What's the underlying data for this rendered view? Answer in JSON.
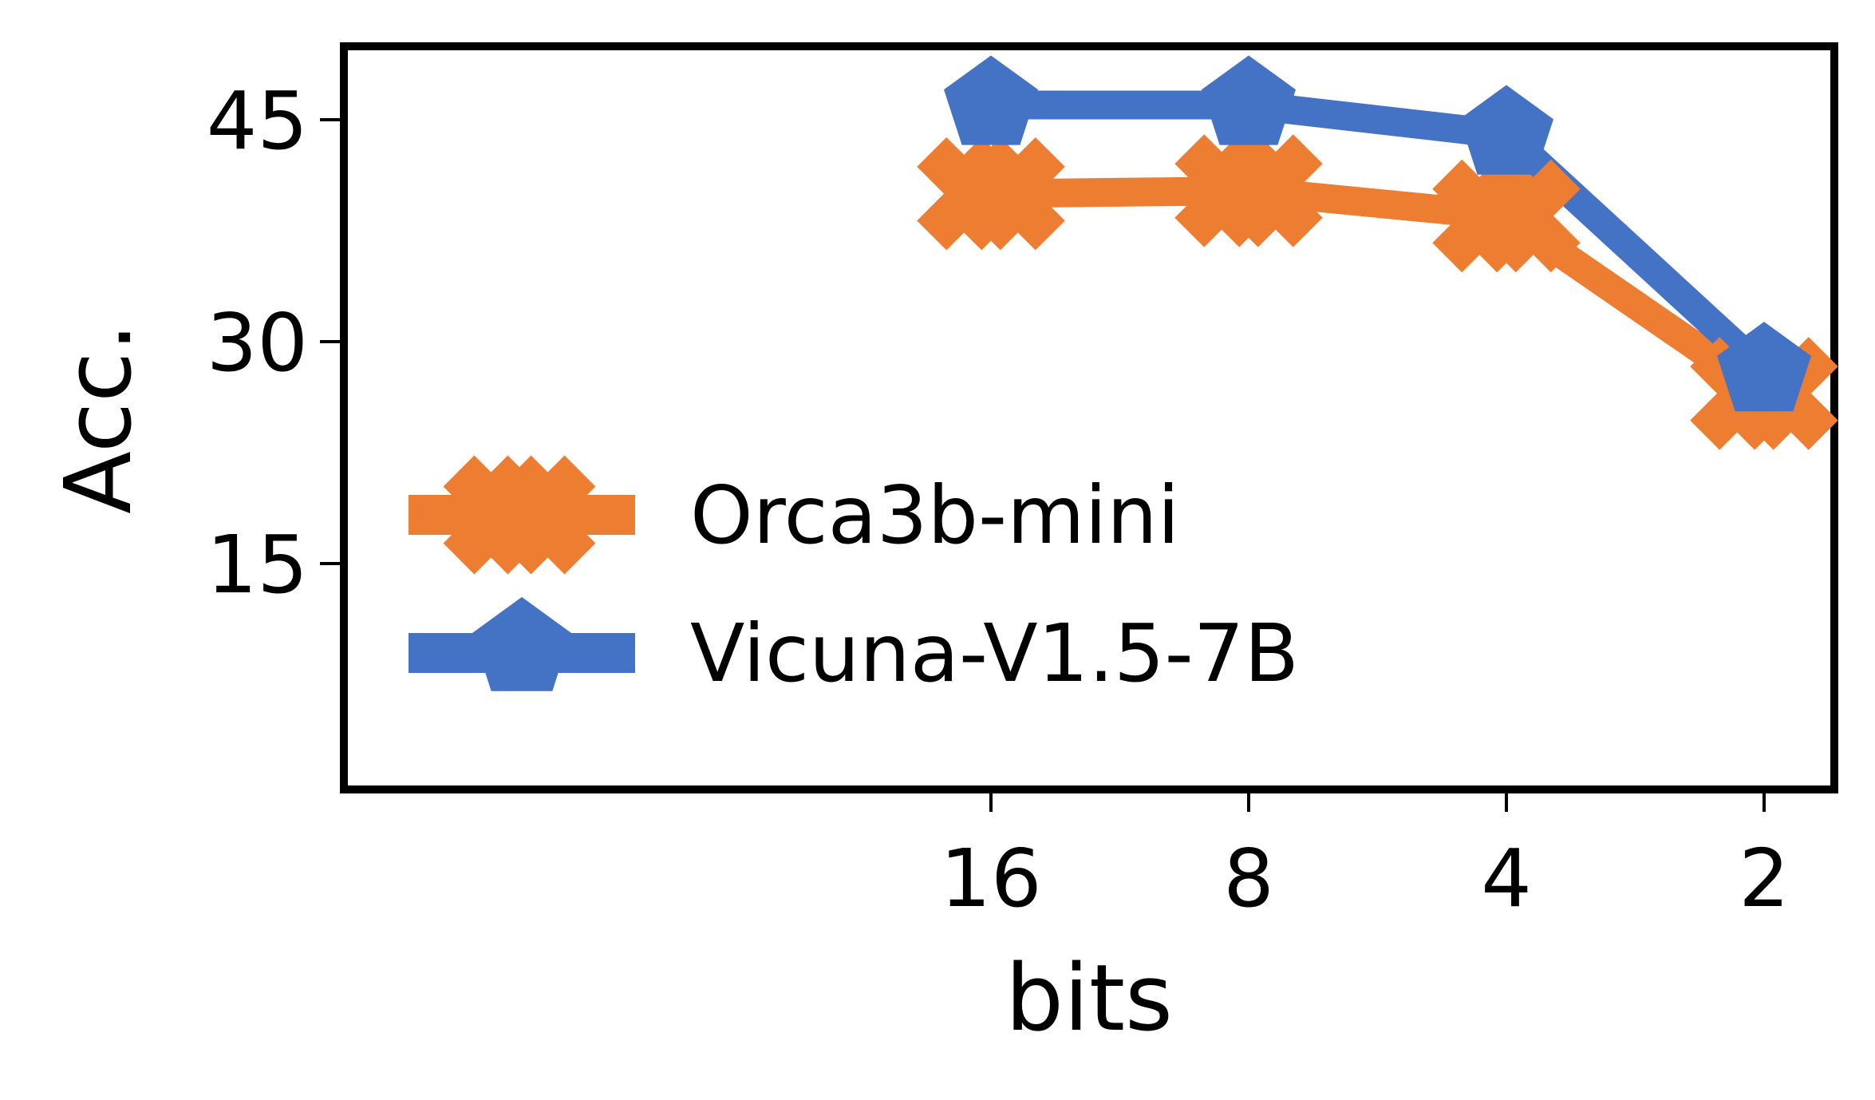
{
  "chart_data": {
    "type": "line",
    "title": "",
    "xlabel": "bits",
    "ylabel": "Acc.",
    "categories": [
      "16",
      "8",
      "4",
      "2"
    ],
    "x": [
      16,
      8,
      4,
      2
    ],
    "ylim": [
      0,
      50
    ],
    "yticks": [
      15,
      30,
      45
    ],
    "grid": false,
    "legend_position": "lower-left",
    "series": [
      {
        "name": "Orca3b-mini",
        "color": "#ED7D31",
        "marker": "x-icon",
        "values": [
          40.0,
          40.2,
          38.5,
          26.5
        ]
      },
      {
        "name": "Vicuna-V1.5-7B",
        "color": "#4472C4",
        "marker": "pentagon-icon",
        "values": [
          46.0,
          46.0,
          44.0,
          28.0
        ]
      }
    ]
  }
}
